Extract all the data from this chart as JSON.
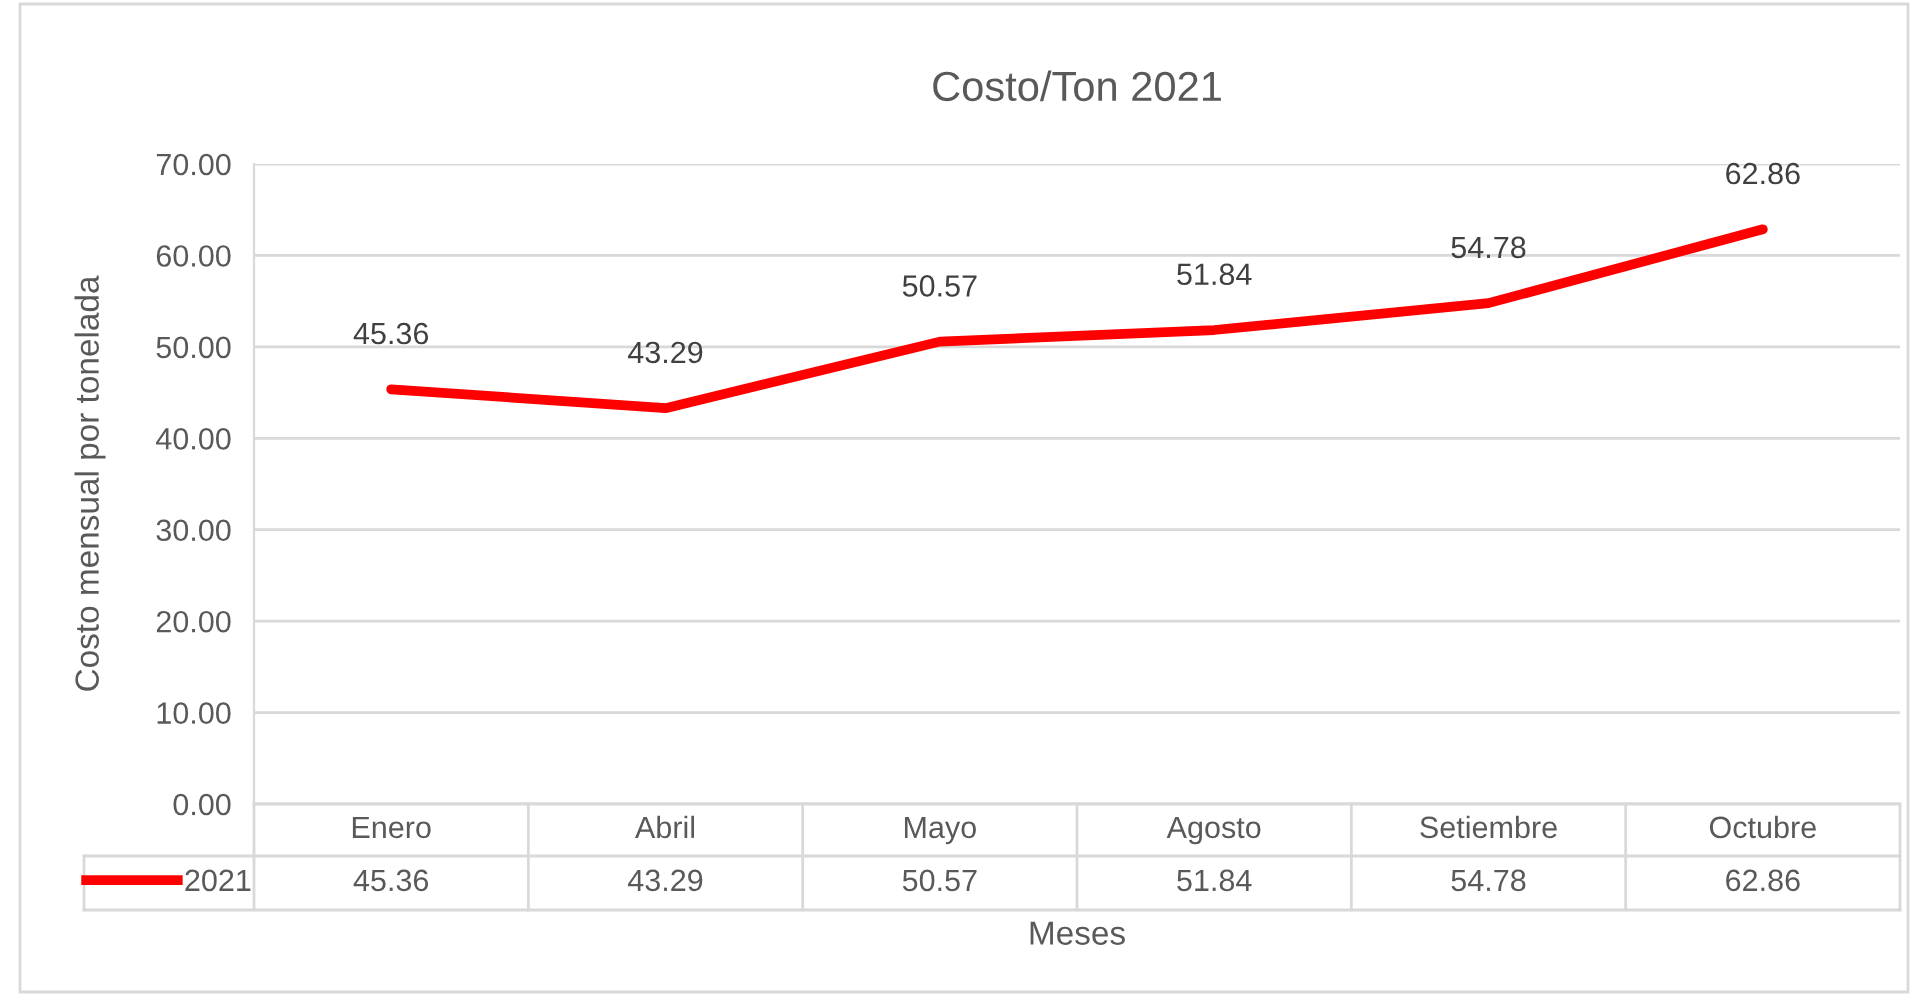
{
  "chart_data": {
    "type": "line",
    "title": "Costo/Ton 2021",
    "xlabel": "Meses",
    "ylabel": "Costo mensual por tonelada",
    "categories": [
      "Enero",
      "Abril",
      "Mayo",
      "Agosto",
      "Setiembre",
      "Octubre"
    ],
    "series": [
      {
        "name": "2021",
        "color": "#ff0000",
        "values": [
          45.36,
          43.29,
          50.57,
          51.84,
          54.78,
          62.86
        ]
      }
    ],
    "ylim": [
      0,
      70
    ],
    "yticks": [
      {
        "value": 0,
        "label": "0.00"
      },
      {
        "value": 10,
        "label": "10.00"
      },
      {
        "value": 20,
        "label": "20.00"
      },
      {
        "value": 30,
        "label": "30.00"
      },
      {
        "value": 40,
        "label": "40.00"
      },
      {
        "value": 50,
        "label": "50.00"
      },
      {
        "value": 60,
        "label": "60.00"
      },
      {
        "value": 70,
        "label": "70.00"
      }
    ],
    "annotations": [
      "45.36",
      "43.29",
      "50.57",
      "51.84",
      "54.78",
      "62.86"
    ],
    "grid": "y",
    "legend": "bottom",
    "data_labels": true,
    "marker": "none",
    "line_style": "solid"
  }
}
